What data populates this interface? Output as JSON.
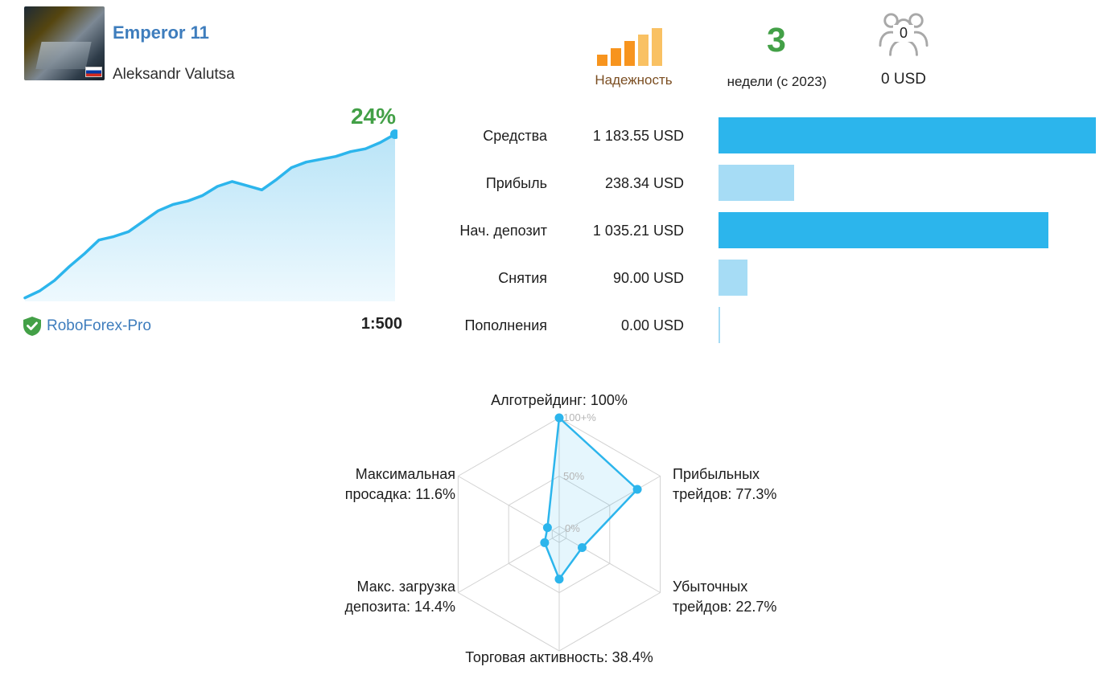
{
  "header": {
    "title": "Emperor 11",
    "author": "Aleksandr Valutsa"
  },
  "reliability": {
    "label": "Надежность"
  },
  "age": {
    "value": "3",
    "label": "недели (с 2023)"
  },
  "subscribers": {
    "count": "0",
    "funds": "0 USD"
  },
  "growth": {
    "value": "24%"
  },
  "broker": {
    "name": "RoboForex-Pro",
    "leverage": "1:500"
  },
  "stats": {
    "rows": [
      {
        "label": "Средства",
        "value": "1 183.55 USD",
        "amount": 1183.55,
        "bar_color": "#2cb5ec"
      },
      {
        "label": "Прибыль",
        "value": "238.34 USD",
        "amount": 238.34,
        "bar_color": "#a6dcf5"
      },
      {
        "label": "Нач. депозит",
        "value": "1 035.21 USD",
        "amount": 1035.21,
        "bar_color": "#2cb5ec"
      },
      {
        "label": "Снятия",
        "value": "90.00 USD",
        "amount": 90.0,
        "bar_color": "#a6dcf5"
      },
      {
        "label": "Пополнения",
        "value": "0.00 USD",
        "amount": 0.0,
        "bar_color": "#a6dcf5"
      }
    ]
  },
  "radar": {
    "rings": [
      "100+%",
      "50%",
      "0%"
    ],
    "labels": {
      "top": "Алготрейдинг: 100%",
      "right_top": "Прибыльных\nтрейдов: 77.3%",
      "right_bottom": "Убыточных\nтрейдов: 22.7%",
      "bottom": "Торговая активность: 38.4%",
      "left_bottom": "Макс. загрузка\nдепозита: 14.4%",
      "left_top": "Максимальная\nпросадка: 11.6%"
    }
  },
  "colors": {
    "accent_blue": "#2cb5ec",
    "light_blue": "#a6dcf5",
    "green": "#43a047",
    "link_blue": "#3e7dbd",
    "reliability_orange": "#f7941e",
    "reliability_pale": "#f9c163"
  },
  "chart_data": [
    {
      "type": "area",
      "title": "Рост счёта",
      "end_label": "24%",
      "ymax": 24,
      "values": [
        0.5,
        1.5,
        3,
        5,
        6.8,
        8.8,
        9.3,
        10,
        11.5,
        13,
        13.9,
        14.4,
        15.2,
        16.5,
        17.2,
        16.6,
        16,
        17.5,
        19.2,
        20,
        20.4,
        20.8,
        21.5,
        21.9,
        22.8,
        24
      ]
    },
    {
      "type": "bar",
      "orientation": "horizontal",
      "categories": [
        "Средства",
        "Прибыль",
        "Нач. депозит",
        "Снятия",
        "Пополнения"
      ],
      "values": [
        1183.55,
        238.34,
        1035.21,
        90.0,
        0.0
      ],
      "unit": "USD"
    },
    {
      "type": "radar",
      "categories": [
        "Алготрейдинг",
        "Прибыльных трейдов",
        "Убыточных трейдов",
        "Торговая активность",
        "Макс. загрузка депозита",
        "Максимальная просадка"
      ],
      "values": [
        100,
        77.3,
        22.7,
        38.4,
        14.4,
        11.6
      ],
      "rings": [
        "100+%",
        "50%",
        "0%"
      ]
    }
  ]
}
